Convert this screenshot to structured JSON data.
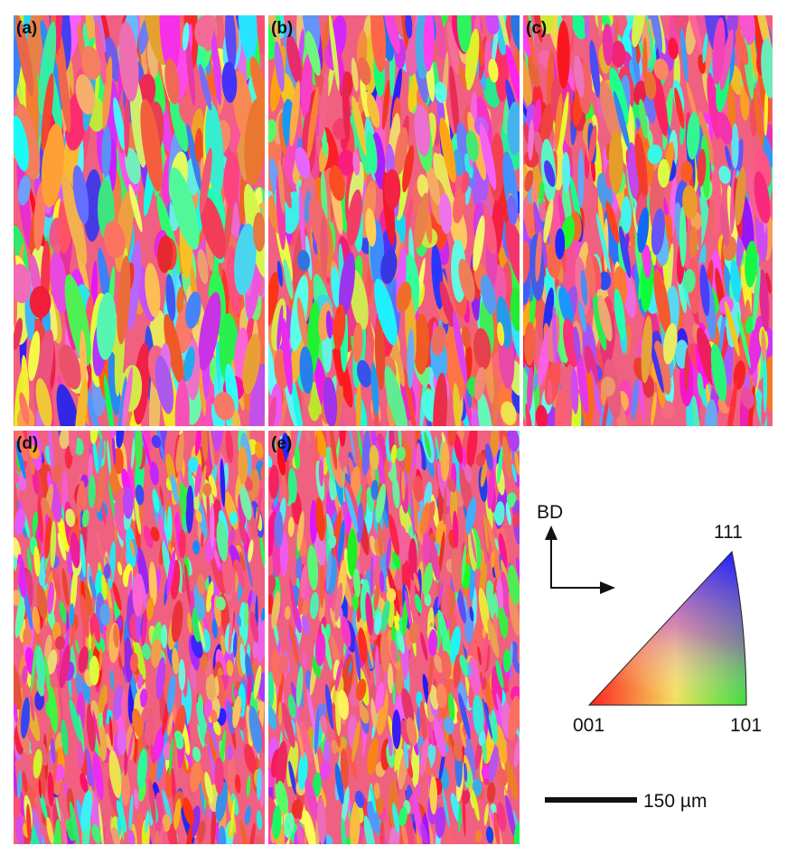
{
  "panels": [
    {
      "label": "(a)"
    },
    {
      "label": "(b)"
    },
    {
      "label": "(c)"
    },
    {
      "label": "(d)"
    },
    {
      "label": "(e)"
    }
  ],
  "legend": {
    "direction": "BD",
    "vertex_111": "111",
    "vertex_001": "001",
    "vertex_101": "101"
  },
  "scale_bar": {
    "label": "150 µm"
  }
}
